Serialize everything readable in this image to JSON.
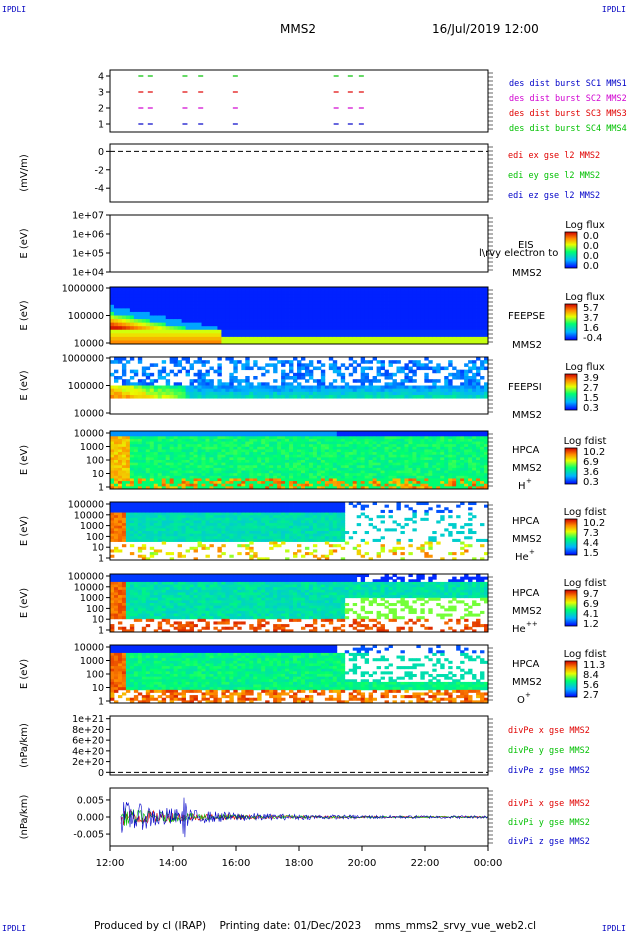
{
  "header": {
    "corner_tag": "IPDLI",
    "spacecraft": "MMS2",
    "date_time": "16/Jul/2019 12:00"
  },
  "footer": {
    "producer": "Produced by cl (IRAP)",
    "printing_date": "Printing date: 01/Dec/2023",
    "filename": "mms_mms2_srvy_vue_web2.cl"
  },
  "colors": {
    "mms1": "#0000c8",
    "mms2": "#d000d0",
    "mms3": "#e00000",
    "mms4": "#00c000",
    "x": "#e00000",
    "y": "#00c000",
    "z": "#0000c8"
  },
  "chart_data": [
    {
      "type": "scatter",
      "panel": "burst_availability",
      "ylim": [
        0.5,
        4.5
      ],
      "yticks": [
        "1",
        "2",
        "3",
        "4"
      ],
      "series": [
        {
          "name": "des dist burst SC1 MMS1",
          "level": 1,
          "color": "#0000c8",
          "x": [
            12.9,
            13.2,
            14.3,
            14.8,
            15.9,
            19.1,
            19.55,
            19.9
          ]
        },
        {
          "name": "des dist burst SC2 MMS2",
          "level": 2,
          "color": "#d000d0",
          "x": [
            12.9,
            13.2,
            14.3,
            14.8,
            15.9,
            19.1,
            19.55,
            19.9
          ]
        },
        {
          "name": "des dist burst SC3 MMS3",
          "level": 3,
          "color": "#e00000",
          "x": [
            12.9,
            13.2,
            14.3,
            14.8,
            15.9,
            19.1,
            19.55,
            19.9
          ]
        },
        {
          "name": "des dist burst SC4 MMS4",
          "level": 4,
          "color": "#00c000",
          "x": [
            12.9,
            13.2,
            14.3,
            14.8,
            15.9,
            19.1,
            19.55,
            19.9
          ]
        }
      ]
    },
    {
      "type": "line",
      "panel": "edi_e_field",
      "ylabel": "(mV/m)",
      "ylim": [
        -5.5,
        0.8
      ],
      "yticks": [
        "0",
        "-2",
        "-4"
      ],
      "reference_line": 0,
      "series": [
        {
          "name": "edi ex gse l2 MMS2",
          "color": "#e00000"
        },
        {
          "name": "edi ey gse l2 MMS2",
          "color": "#00c000"
        },
        {
          "name": "edi ez gse l2 MMS2",
          "color": "#0000c8"
        }
      ]
    },
    {
      "type": "heatmap",
      "panel": "eis",
      "ylabel": "E (eV)",
      "yticks": [
        "1e+07",
        "1e+06",
        "1e+05",
        "1e+04"
      ],
      "instrument": "EIS",
      "product": "l\\rvy electron to",
      "spacecraft": "MMS2",
      "colorbar_title": "Log flux",
      "colorbar_ticks": [
        "0.0",
        "0.0",
        "0.0",
        "0.0"
      ]
    },
    {
      "type": "heatmap",
      "panel": "feeps_electron",
      "ylabel": "E (eV)",
      "yticks": [
        "1000000",
        "100000",
        "10000"
      ],
      "instrument": "FEEPSE",
      "spacecraft": "MMS2",
      "colorbar_title": "Log flux",
      "colorbar_ticks": [
        "5.7",
        "3.7",
        "1.6",
        "-0.4"
      ]
    },
    {
      "type": "heatmap",
      "panel": "feeps_ion",
      "ylabel": "E (eV)",
      "yticks": [
        "1000000",
        "100000",
        "10000"
      ],
      "instrument": "FEEPSI",
      "spacecraft": "MMS2",
      "colorbar_title": "Log flux",
      "colorbar_ticks": [
        "3.9",
        "2.7",
        "1.5",
        "0.3"
      ]
    },
    {
      "type": "heatmap",
      "panel": "hpca_h",
      "ylabel": "E (eV)",
      "yticks": [
        "10000",
        "1000",
        "100",
        "10",
        "1"
      ],
      "instrument": "HPCA",
      "spacecraft": "MMS2",
      "species": "H",
      "charge": "+",
      "colorbar_title": "Log fdist",
      "colorbar_ticks": [
        "10.2",
        "6.9",
        "3.6",
        "0.3"
      ]
    },
    {
      "type": "heatmap",
      "panel": "hpca_he1",
      "ylabel": "E (eV)",
      "yticks": [
        "100000",
        "10000",
        "1000",
        "100",
        "10",
        "1"
      ],
      "instrument": "HPCA",
      "spacecraft": "MMS2",
      "species": "He",
      "charge": "+",
      "colorbar_title": "Log fdist",
      "colorbar_ticks": [
        "10.2",
        "7.3",
        "4.4",
        "1.5"
      ]
    },
    {
      "type": "heatmap",
      "panel": "hpca_he2",
      "ylabel": "E (eV)",
      "yticks": [
        "100000",
        "10000",
        "1000",
        "100",
        "10",
        "1"
      ],
      "instrument": "HPCA",
      "spacecraft": "MMS2",
      "species": "He",
      "charge": "++",
      "colorbar_title": "Log fdist",
      "colorbar_ticks": [
        "9.7",
        "6.9",
        "4.1",
        "1.2"
      ]
    },
    {
      "type": "heatmap",
      "panel": "hpca_o",
      "ylabel": "E (eV)",
      "yticks": [
        "10000",
        "1000",
        "100",
        "10",
        "1"
      ],
      "instrument": "HPCA",
      "spacecraft": "MMS2",
      "species": "O",
      "charge": "+",
      "colorbar_title": "Log fdist",
      "colorbar_ticks": [
        "11.3",
        "8.4",
        "5.6",
        "2.7"
      ]
    },
    {
      "type": "line",
      "panel": "div_pe",
      "ylabel": "(nPa/km)",
      "ylim": [
        -5e+19,
        1.05e+21
      ],
      "yticks": [
        "1e+21",
        "8e+20",
        "6e+20",
        "4e+20",
        "2e+20",
        "0"
      ],
      "reference_line": 0,
      "series": [
        {
          "name": "divPe x gse MMS2",
          "color": "#e00000"
        },
        {
          "name": "divPe y gse MMS2",
          "color": "#00c000"
        },
        {
          "name": "divPe z gse MMS2",
          "color": "#0000c8"
        }
      ]
    },
    {
      "type": "line",
      "panel": "div_pi",
      "ylabel": "(nPa/km)",
      "ylim": [
        -0.0085,
        0.0085
      ],
      "yticks": [
        "0.005",
        "0.000",
        "-0.005"
      ],
      "series": [
        {
          "name": "divPi x gse MMS2",
          "color": "#e00000"
        },
        {
          "name": "divPi y gse MMS2",
          "color": "#00c000"
        },
        {
          "name": "divPi z gse MMS2",
          "color": "#0000c8"
        }
      ]
    },
    {
      "type": "axis",
      "panel": "time_axis",
      "xlim": [
        12,
        24
      ],
      "xticks": [
        "12:00",
        "14:00",
        "16:00",
        "18:00",
        "20:00",
        "22:00",
        "00:00"
      ]
    }
  ]
}
